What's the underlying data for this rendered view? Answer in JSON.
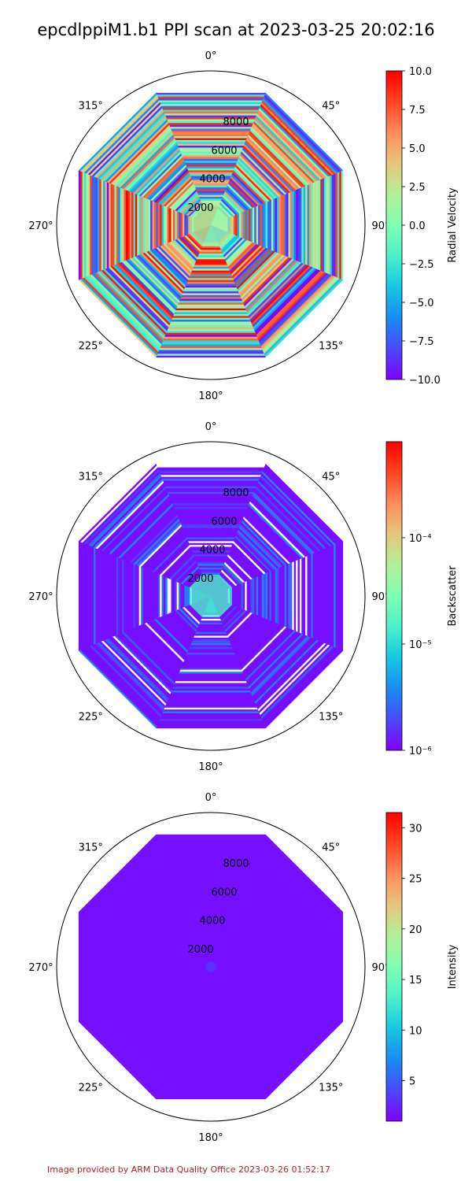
{
  "title": "epcdlppiM1.b1 PPI scan at 2023-03-25 20:02:16",
  "footer": "Image provided by ARM Data Quality Office 2023-03-26 01:52:17",
  "colors": {
    "credit": "#b22222",
    "colormap": [
      "#8000ff",
      "#4c48fd",
      "#198cf1",
      "#19c6e2",
      "#4df0c9",
      "#80feb3",
      "#b3f09a",
      "#e6c67e",
      "#ff8c5f",
      "#ff4520",
      "#ff0000"
    ]
  },
  "chart_data": [
    {
      "type": "heatmap",
      "projection": "polar",
      "pattern": "octagon-striped",
      "theta_ticks": [
        "0°",
        "45°",
        "90°",
        "135°",
        "180°",
        "225°",
        "270°",
        "315°"
      ],
      "r_ticks": [
        "2000",
        "4000",
        "6000",
        "8000"
      ],
      "r_values": [
        2000,
        4000,
        6000,
        8000
      ],
      "rlim": [
        0,
        10000
      ],
      "colorbar": {
        "label": "Radial Velocity",
        "scale": "linear",
        "range": [
          -10,
          10
        ],
        "ticks": [
          "10.0",
          "7.5",
          "5.0",
          "2.5",
          "0.0",
          "−2.5",
          "−5.0",
          "−7.5",
          "−10.0"
        ],
        "tick_values": [
          10,
          7.5,
          5,
          2.5,
          0,
          -2.5,
          -5,
          -7.5,
          -10
        ]
      }
    },
    {
      "type": "heatmap",
      "projection": "polar",
      "pattern": "octagon-mostly-low",
      "theta_ticks": [
        "0°",
        "45°",
        "90°",
        "135°",
        "180°",
        "225°",
        "270°",
        "315°"
      ],
      "r_ticks": [
        "2000",
        "4000",
        "6000",
        "8000"
      ],
      "r_values": [
        2000,
        4000,
        6000,
        8000
      ],
      "rlim": [
        0,
        10000
      ],
      "colorbar": {
        "label": "Backscatter",
        "scale": "log",
        "range": [
          1e-06,
          0.0008
        ],
        "ticks": [
          "10⁻⁴",
          "10⁻⁵",
          "10⁻⁶"
        ],
        "tick_values": [
          0.0001,
          1e-05,
          1e-06
        ]
      }
    },
    {
      "type": "heatmap",
      "projection": "polar",
      "pattern": "octagon-uniform",
      "theta_ticks": [
        "0°",
        "45°",
        "90°",
        "135°",
        "180°",
        "225°",
        "270°",
        "315°"
      ],
      "r_ticks": [
        "2000",
        "4000",
        "6000",
        "8000"
      ],
      "r_values": [
        2000,
        4000,
        6000,
        8000
      ],
      "rlim": [
        0,
        10000
      ],
      "colorbar": {
        "label": "Intensity",
        "scale": "linear",
        "range": [
          1,
          31.5
        ],
        "ticks": [
          "30",
          "25",
          "20",
          "15",
          "10",
          "5"
        ],
        "tick_values": [
          30,
          25,
          20,
          15,
          10,
          5
        ]
      }
    }
  ]
}
